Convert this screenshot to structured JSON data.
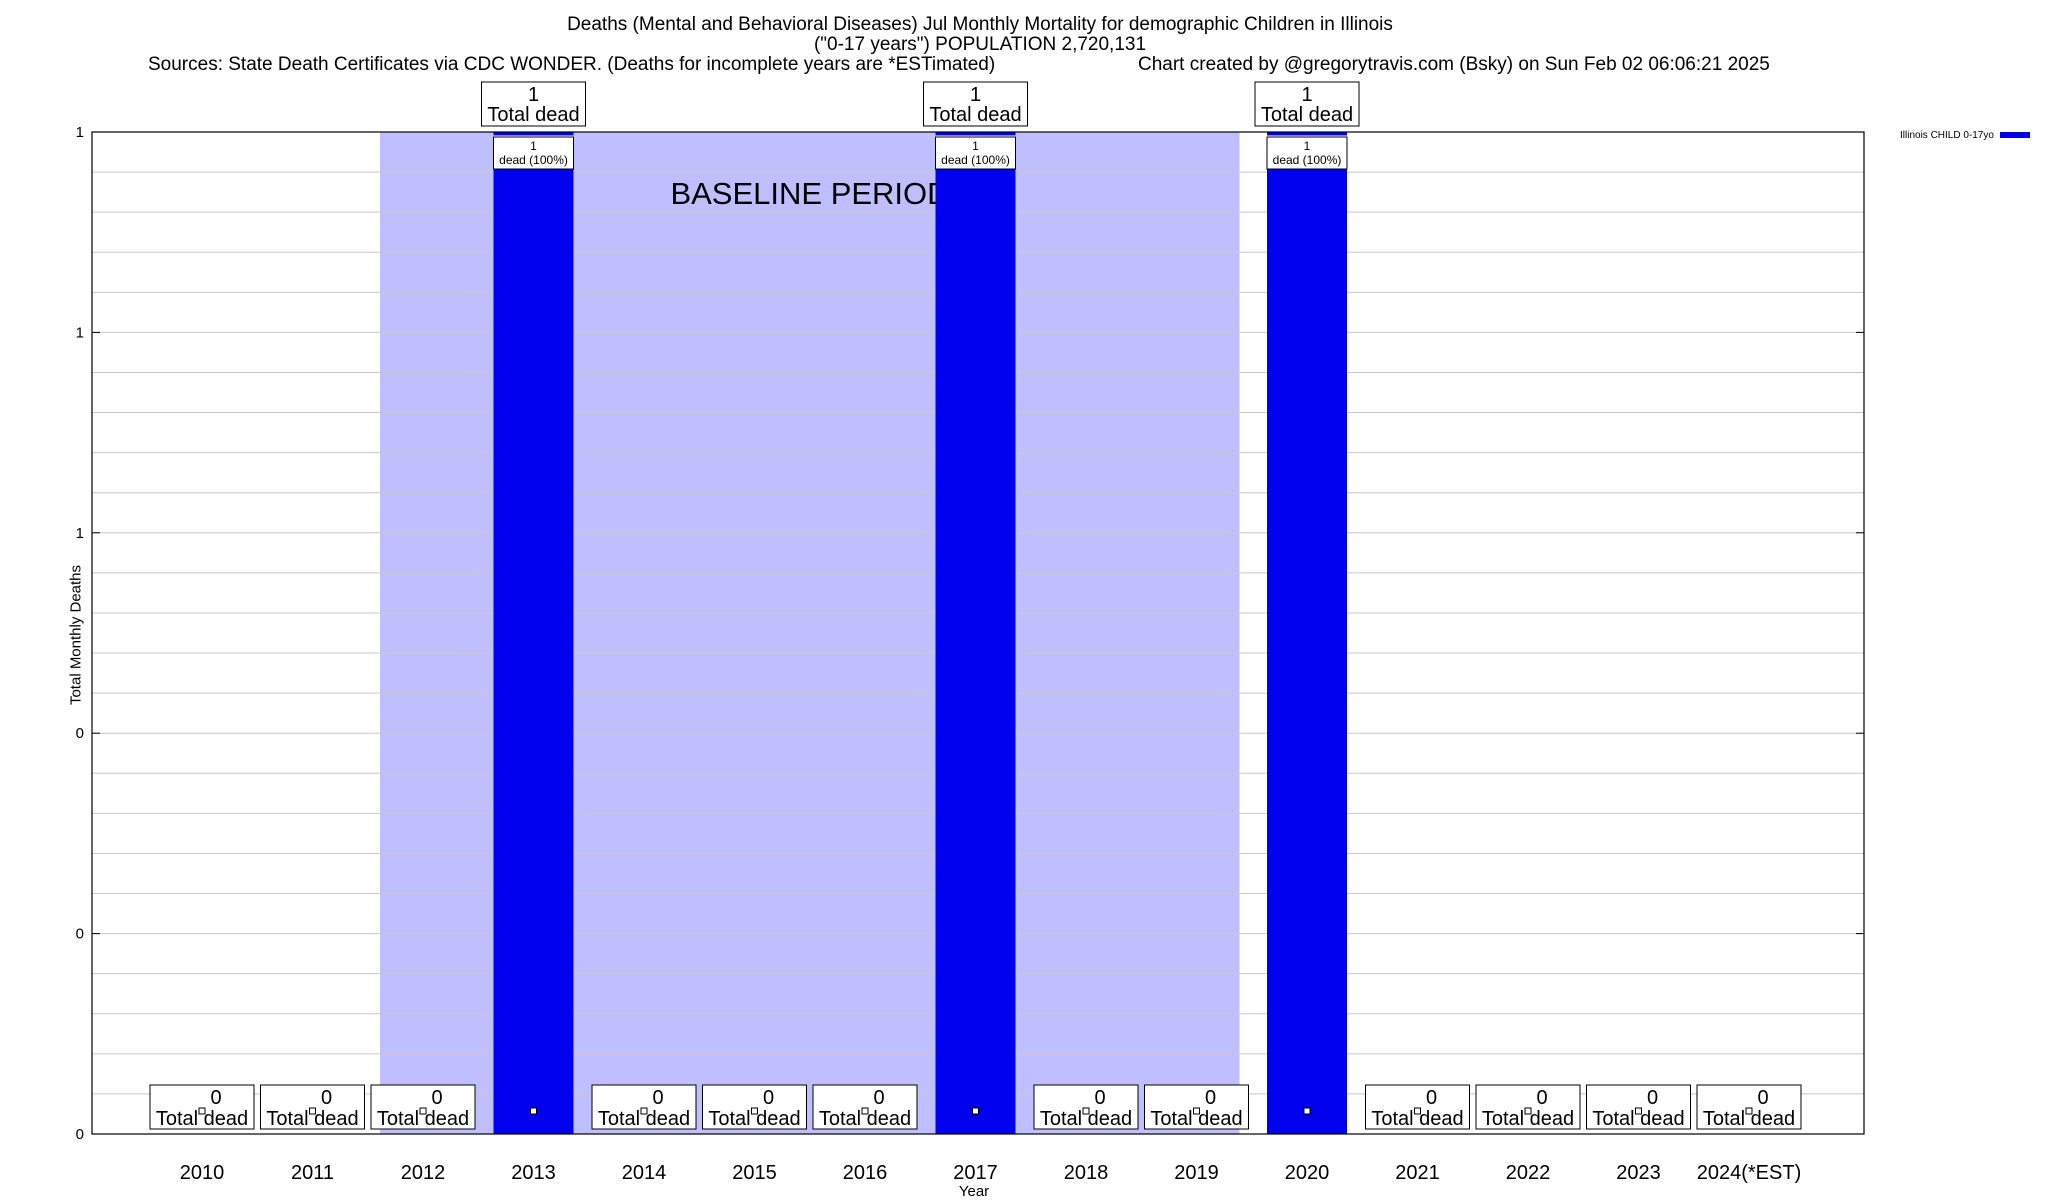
{
  "header": {
    "title": "Deaths (Mental and Behavioral Diseases) Jul Monthly Mortality for demographic Children in Illinois",
    "subtitle": "(\"0-17 years\") POPULATION 2,720,131",
    "sources": "Sources: State Death Certificates via CDC WONDER. (Deaths for incomplete years are *ESTimated)",
    "credit": "Chart created by @gregorytravis.com (Bsky) on Sun Feb 02 06:06:21 2025"
  },
  "legend": {
    "label": "Illinois CHILD 0-17yo",
    "color": "#0000ee"
  },
  "chart_data": {
    "type": "bar",
    "title": "Deaths (Mental and Behavioral Diseases) Jul Monthly Mortality for demographic Children in Illinois",
    "subtitle": "(\"0-17 years\") POPULATION 2,720,131",
    "xlabel": "Year",
    "ylabel": "Total Monthly Deaths",
    "ylim": [
      0,
      1
    ],
    "ytick_labels": [
      "0",
      "0",
      "0",
      "1",
      "1",
      "1"
    ],
    "grid": true,
    "legend_position": "top-right, outside plot",
    "categories": [
      "2010",
      "2011",
      "2012",
      "2013",
      "2014",
      "2015",
      "2016",
      "2017",
      "2018",
      "2019",
      "2020",
      "2021",
      "2022",
      "2023",
      "2024(*EST)"
    ],
    "series": [
      {
        "name": "Illinois CHILD 0-17yo",
        "color": "#0000ee",
        "values": [
          0,
          0,
          0,
          1,
          0,
          0,
          0,
          1,
          0,
          0,
          1,
          0,
          0,
          0,
          0
        ]
      }
    ],
    "total_labels": [
      "0",
      "0",
      "0",
      "1",
      "0",
      "0",
      "0",
      "1",
      "0",
      "0",
      "1",
      "0",
      "0",
      "0",
      "0"
    ],
    "total_label_suffix": "Total dead",
    "bar_labels": {
      "2013": "1 dead (100%)",
      "2017": "1 dead (100%)",
      "2020": "1 dead (100%)"
    },
    "shaded_region": {
      "label": "BASELINE PERIOD",
      "from": "2012",
      "to": "2019",
      "color": "#bfbfff"
    }
  }
}
